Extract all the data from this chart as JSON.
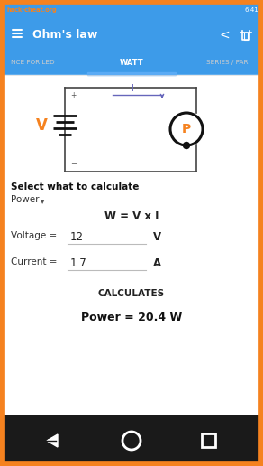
{
  "status_bar_color": "#3d9be9",
  "app_bar_color": "#3d9be9",
  "app_bar_title": "Ohm's law",
  "background_color": "#ffffff",
  "bottom_bar_color": "#1a1a1a",
  "tab_active": "WATT",
  "tab_left": "NCE FOR LED",
  "tab_right": "SERIES / PAR",
  "tab_indicator_color": "#5aabf5",
  "tab_text_color": "#cccccc",
  "tab_active_text_color": "#ffffff",
  "orange_border": "#f5821f",
  "section_title": "Select what to calculate",
  "dropdown_label": "Power",
  "formula": "W = V x I",
  "voltage_label": "Voltage =",
  "voltage_value": "12",
  "voltage_unit": "V",
  "current_label": "Current =",
  "current_value": "1.7",
  "current_unit": "A",
  "calculates_label": "CALCULATES",
  "result_label": "Power = 20.4 W",
  "battery_color": "#111111",
  "battery_label_color": "#f5821f",
  "circuit_line_color": "#444444",
  "current_arrow_color": "#6666bb",
  "power_circle_color": "#111111",
  "power_label_color": "#f5821f"
}
